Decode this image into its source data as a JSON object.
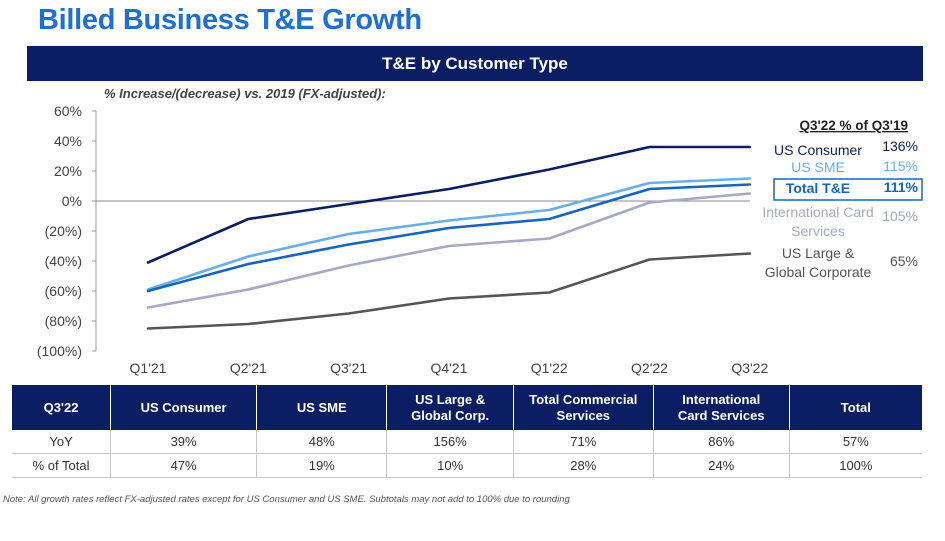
{
  "page": {
    "title": "Billed Business T&E Growth",
    "banner": "T&E by Customer Type",
    "subtitle": "% Increase/(decrease) vs. 2019 (FX-adjusted):",
    "footnote": "Note: All growth rates reflect FX-adjusted rates except for US Consumer and US SME. Subtotals may not add to 100% due to rounding"
  },
  "chart_data": {
    "type": "line",
    "categories": [
      "Q1'21",
      "Q2'21",
      "Q3'21",
      "Q4'21",
      "Q1'22",
      "Q2'22",
      "Q3'22"
    ],
    "y_tick_labels": [
      "60%",
      "40%",
      "20%",
      "0%",
      "(20%)",
      "(40%)",
      "(60%)",
      "(80%)",
      "(100%)"
    ],
    "ylim": [
      -100,
      60
    ],
    "unit": "%",
    "zero_line": true,
    "legend_title": "Q3'22 % of Q3'19",
    "series": [
      {
        "name": "US Consumer",
        "pct_of_q319": "136%",
        "color": "#0b1e63",
        "values": [
          -41,
          -12,
          -2,
          8,
          21,
          36,
          36
        ]
      },
      {
        "name": "US SME",
        "pct_of_q319": "115%",
        "color": "#6aaee6",
        "values": [
          -59,
          -37,
          -22,
          -13,
          -6,
          12,
          15
        ]
      },
      {
        "name": "Total T&E",
        "pct_of_q319": "111%",
        "color": "#1565c0",
        "highlight": true,
        "values": [
          -60,
          -42,
          -29,
          -18,
          -12,
          8,
          11
        ]
      },
      {
        "name_lines": [
          "International Card",
          "Services"
        ],
        "pct_of_q319": "105%",
        "color": "#a4a9c4",
        "values": [
          -71,
          -59,
          -43,
          -30,
          -25,
          -1,
          5
        ]
      },
      {
        "name_lines": [
          "US Large &",
          "Global Corporate"
        ],
        "pct_of_q319": "65%",
        "color": "#555555",
        "values": [
          -85,
          -82,
          -75,
          -65,
          -61,
          -39,
          -35
        ]
      }
    ]
  },
  "table": {
    "headers": [
      [
        "Q3'22"
      ],
      [
        "US Consumer"
      ],
      [
        "US SME"
      ],
      [
        "US Large &",
        "Global Corp."
      ],
      [
        "Total Commercial",
        "Services"
      ],
      [
        "International",
        "Card Services"
      ],
      [
        "Total"
      ]
    ],
    "rows": [
      [
        "YoY",
        "39%",
        "48%",
        "156%",
        "71%",
        "86%",
        "57%"
      ],
      [
        "% of Total",
        "47%",
        "19%",
        "10%",
        "28%",
        "24%",
        "100%"
      ]
    ]
  }
}
